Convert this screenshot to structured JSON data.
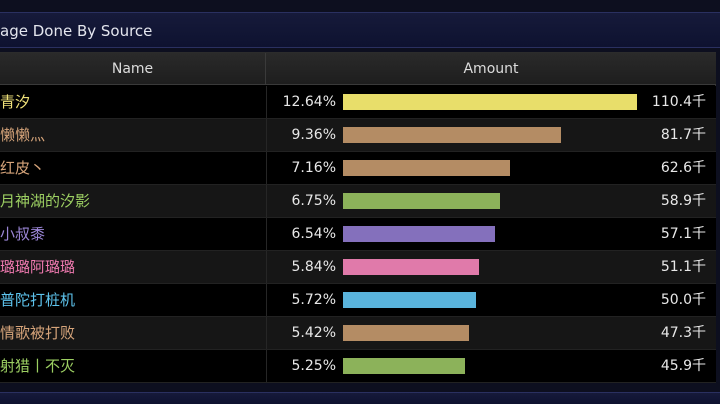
{
  "title": "age Done By Source",
  "columns": {
    "name": "Name",
    "amount": "Amount"
  },
  "bar_max_fraction_of_top": 1.0,
  "rows": [
    {
      "name": "青汐",
      "percent": "12.64%",
      "amount": "110.4千",
      "value": 110.4,
      "name_color": "#f0e27a",
      "bar_color": "#e8de6a"
    },
    {
      "name": "懒懒灬",
      "percent": "9.36%",
      "amount": "81.7千",
      "value": 81.7,
      "name_color": "#d6a47a",
      "bar_color": "#b48c64"
    },
    {
      "name": "红皮丶",
      "percent": "7.16%",
      "amount": "62.6千",
      "value": 62.6,
      "name_color": "#d6a47a",
      "bar_color": "#b48c64"
    },
    {
      "name": "月神湖的汐影",
      "percent": "6.75%",
      "amount": "58.9千",
      "value": 58.9,
      "name_color": "#9ccf62",
      "bar_color": "#8cb25a"
    },
    {
      "name": "小叔黍",
      "percent": "6.54%",
      "amount": "57.1千",
      "value": 57.1,
      "name_color": "#9b86d6",
      "bar_color": "#8470bc"
    },
    {
      "name": "璐璐阿璐璐",
      "percent": "5.84%",
      "amount": "51.1千",
      "value": 51.1,
      "name_color": "#f07ab0",
      "bar_color": "#e07aaa"
    },
    {
      "name": "普陀打桩机",
      "percent": "5.72%",
      "amount": "50.0千",
      "value": 50.0,
      "name_color": "#5ec4ee",
      "bar_color": "#5ab4dc"
    },
    {
      "name": "情歌被打败",
      "percent": "5.42%",
      "amount": "47.3千",
      "value": 47.3,
      "name_color": "#d6a47a",
      "bar_color": "#b48c64"
    },
    {
      "name": "射猎丨不灭",
      "percent": "5.25%",
      "amount": "45.9千",
      "value": 45.9,
      "name_color": "#9ccf62",
      "bar_color": "#8cb25a"
    }
  ]
}
